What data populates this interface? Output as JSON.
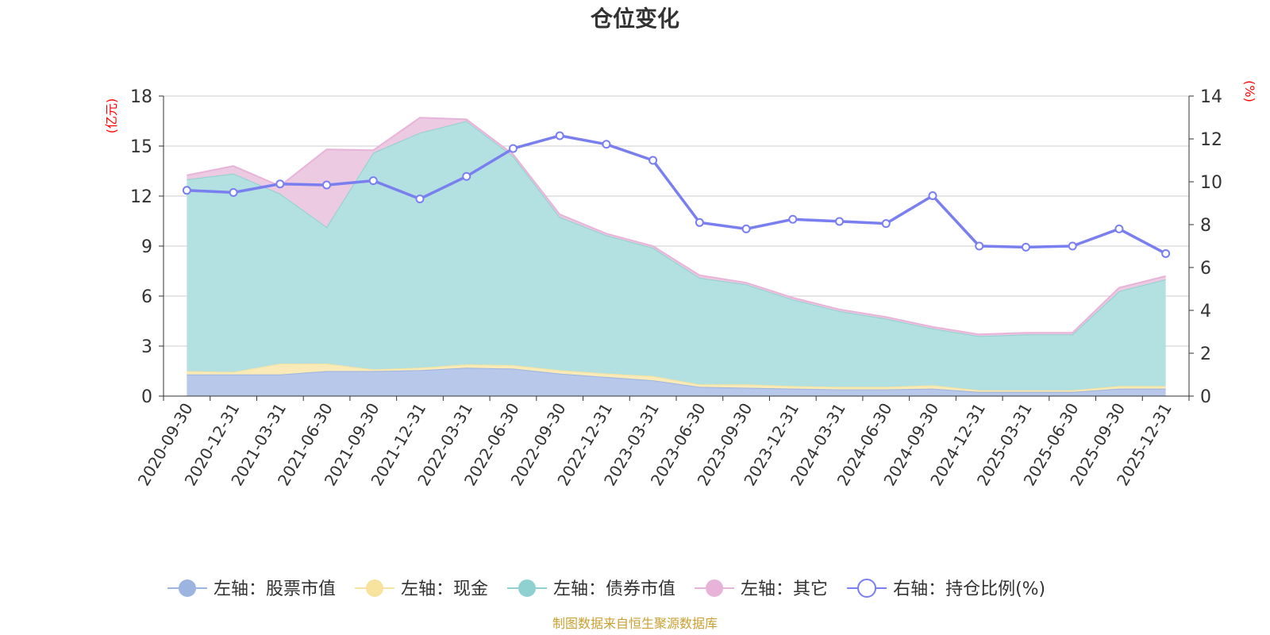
{
  "chart_data": {
    "type": "area",
    "title": "仓位变化",
    "left_unit": "(亿元)",
    "right_unit": "(%)",
    "source_note": "制图数据来自恒生聚源数据库",
    "categories": [
      "2020-09-30",
      "2020-12-31",
      "2021-03-31",
      "2021-06-30",
      "2021-09-30",
      "2021-12-31",
      "2022-03-31",
      "2022-06-30",
      "2022-09-30",
      "2022-12-31",
      "2023-03-31",
      "2023-06-30",
      "2023-09-30",
      "2023-12-31",
      "2024-03-31",
      "2024-06-30",
      "2024-09-30",
      "2024-12-31",
      "2025-03-31",
      "2025-06-30",
      "2025-09-30",
      "2025-12-31"
    ],
    "left_axis": {
      "min": 0,
      "max": 18,
      "ticks": [
        0,
        3,
        6,
        9,
        12,
        15,
        18
      ],
      "tick_labels": [
        "0",
        "3",
        "6",
        "9",
        "12",
        "15",
        "18"
      ]
    },
    "right_axis": {
      "min": 0,
      "max": 14,
      "ticks": [
        0,
        2,
        4,
        6,
        8,
        10,
        12,
        14
      ],
      "tick_labels": [
        "0",
        "2",
        "4",
        "6",
        "8",
        "10",
        "12",
        "14"
      ]
    },
    "stacked_series": [
      {
        "name": "左轴：股票市值",
        "color": "#9bb5e0",
        "fill": "#b7c8ea",
        "values": [
          1.3,
          1.3,
          1.3,
          1.5,
          1.5,
          1.55,
          1.7,
          1.65,
          1.35,
          1.15,
          0.95,
          0.55,
          0.5,
          0.45,
          0.4,
          0.4,
          0.45,
          0.25,
          0.25,
          0.25,
          0.45,
          0.45
        ]
      },
      {
        "name": "左轴：现金",
        "color": "#f7e39e",
        "fill": "#f9eab8",
        "values": [
          0.2,
          0.15,
          0.65,
          0.45,
          0.1,
          0.15,
          0.2,
          0.2,
          0.2,
          0.2,
          0.25,
          0.15,
          0.2,
          0.15,
          0.15,
          0.15,
          0.2,
          0.1,
          0.1,
          0.1,
          0.15,
          0.15
        ]
      },
      {
        "name": "左轴：债券市值",
        "color": "#8fd1d1",
        "fill": "#b3e0e0",
        "values": [
          11.5,
          11.9,
          10.2,
          8.2,
          13.0,
          14.1,
          14.6,
          12.55,
          9.2,
          8.3,
          7.7,
          6.4,
          6.0,
          5.2,
          4.55,
          4.1,
          3.4,
          3.25,
          3.35,
          3.35,
          5.7,
          6.4
        ]
      },
      {
        "name": "左轴：其它",
        "color": "#e8b3d9",
        "fill": "#eccae2",
        "values": [
          0.25,
          0.45,
          0.45,
          4.65,
          0.15,
          0.9,
          0.1,
          0.1,
          0.15,
          0.1,
          0.1,
          0.15,
          0.1,
          0.1,
          0.1,
          0.1,
          0.1,
          0.1,
          0.1,
          0.1,
          0.2,
          0.2
        ]
      }
    ],
    "line_series": {
      "name": "右轴：持仓比例(%)",
      "color": "#7a7ff0",
      "values": [
        9.6,
        9.5,
        9.9,
        9.85,
        10.05,
        9.2,
        10.25,
        11.55,
        12.15,
        11.75,
        11.0,
        8.1,
        7.8,
        8.25,
        8.15,
        8.05,
        9.35,
        7.0,
        6.95,
        7.0,
        7.8,
        6.65
      ]
    },
    "legend_position": "bottom"
  }
}
